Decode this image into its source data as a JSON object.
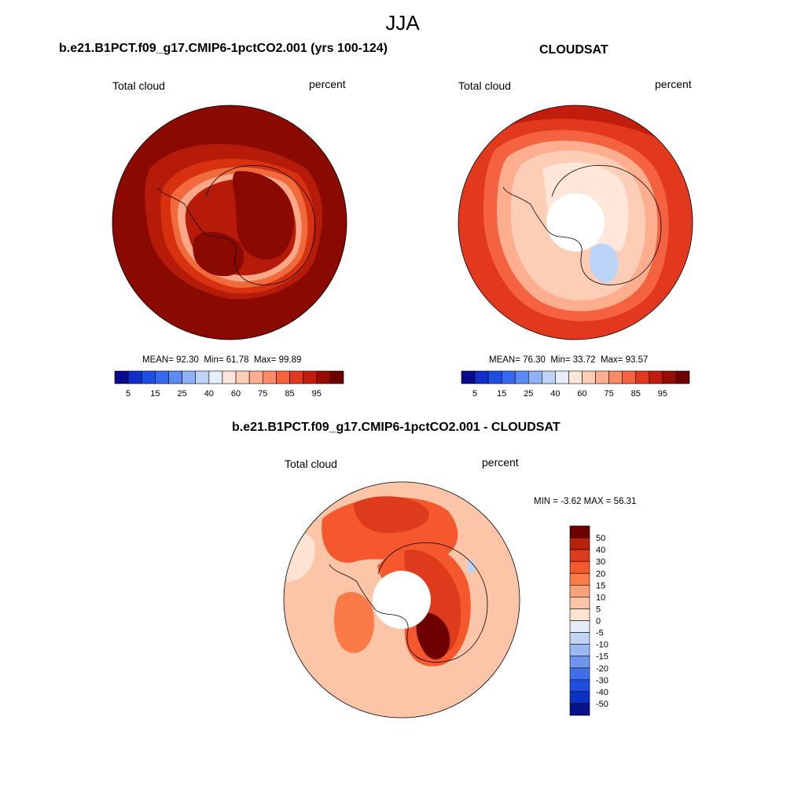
{
  "season": "JJA",
  "chart_data": [
    {
      "type": "heatmap",
      "projection": "south-polar-stereographic",
      "title": "b.e21.B1PCT.f09_g17.CMIP6-1pctCO2.001 (yrs 100-124)",
      "left_label": "Total cloud",
      "right_label": "percent",
      "stats": {
        "mean_label": "MEAN=",
        "mean": "92.30",
        "min_label": "Min=",
        "min": "61.78",
        "max_label": "Max=",
        "max": "99.89"
      },
      "colorbar": {
        "levels": [
          5,
          10,
          15,
          20,
          25,
          30,
          40,
          50,
          60,
          65,
          70,
          75,
          80,
          85,
          90,
          95
        ],
        "tick_labels": [
          "5",
          "15",
          "25",
          "40",
          "60",
          "75",
          "85",
          "95"
        ],
        "colors": [
          "#0a0a8c",
          "#1230c8",
          "#1d4fe0",
          "#3569ee",
          "#5b8af5",
          "#8fb2f7",
          "#bcd4f7",
          "#e5eefa",
          "#fee7d8",
          "#fdcdb5",
          "#fcae8f",
          "#fb8a66",
          "#f4623f",
          "#e2381e",
          "#c11d0c",
          "#970c04",
          "#6e0000"
        ]
      }
    },
    {
      "type": "heatmap",
      "projection": "south-polar-stereographic",
      "title": "CLOUDSAT",
      "left_label": "Total cloud",
      "right_label": "percent",
      "stats": {
        "mean_label": "MEAN=",
        "mean": "76.30",
        "min_label": "Min=",
        "min": "33.72",
        "max_label": "Max=",
        "max": "93.57"
      },
      "colorbar": {
        "levels": [
          5,
          10,
          15,
          20,
          25,
          30,
          40,
          50,
          60,
          65,
          70,
          75,
          80,
          85,
          90,
          95
        ],
        "tick_labels": [
          "5",
          "15",
          "25",
          "40",
          "60",
          "75",
          "85",
          "95"
        ],
        "colors": [
          "#0a0a8c",
          "#1230c8",
          "#1d4fe0",
          "#3569ee",
          "#5b8af5",
          "#8fb2f7",
          "#bcd4f7",
          "#e5eefa",
          "#fee7d8",
          "#fdcdb5",
          "#fcae8f",
          "#fb8a66",
          "#f4623f",
          "#e2381e",
          "#c11d0c",
          "#970c04",
          "#6e0000"
        ]
      }
    },
    {
      "type": "heatmap",
      "projection": "south-polar-stereographic",
      "title": "b.e21.B1PCT.f09_g17.CMIP6-1pctCO2.001 - CLOUDSAT",
      "left_label": "Total cloud",
      "right_label": "percent",
      "stats": {
        "min_label": "MIN =",
        "min": "-3.62",
        "max_label": "MAX =",
        "max": "56.31"
      },
      "colorbar": {
        "levels": [
          -50,
          -40,
          -30,
          -20,
          -15,
          -10,
          -5,
          0,
          5,
          10,
          15,
          20,
          30,
          40,
          50
        ],
        "tick_labels": [
          "50",
          "40",
          "30",
          "20",
          "15",
          "10",
          "5",
          "0",
          "-5",
          "-10",
          "-15",
          "-20",
          "-30",
          "-40",
          "-50"
        ],
        "colors": [
          "#6e0000",
          "#b8200c",
          "#de3a1c",
          "#f4582c",
          "#fa7b48",
          "#fca27a",
          "#fdc5a7",
          "#fde3d2",
          "#e4ecf8",
          "#c0d4f5",
          "#9ab8f2",
          "#6f95ee",
          "#3f6ee8",
          "#1e4ee0",
          "#0b30c4",
          "#07128a"
        ]
      }
    }
  ]
}
